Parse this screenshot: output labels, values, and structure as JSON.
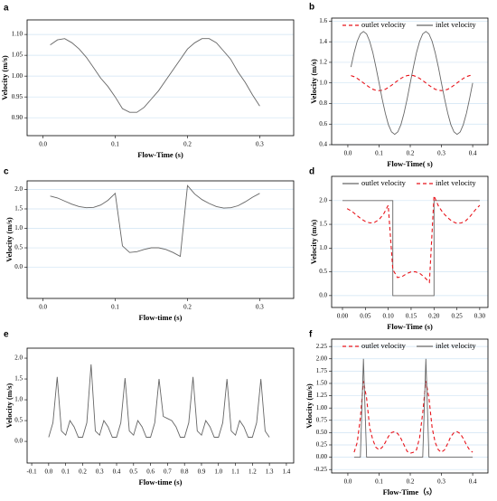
{
  "chart_data": [
    {
      "type": "line",
      "label": "a",
      "xlabel": "Flow-Time (s)",
      "ylabel": "Velocity (m/s)",
      "xlim": [
        -0.022,
        0.347
      ],
      "ylim": [
        0.857,
        1.135
      ],
      "xticks": [
        {
          "value": 0,
          "label": "0.0"
        },
        0.1,
        0.2,
        0.3
      ],
      "yticks": [
        {
          "value": 0.9,
          "label": "0.90"
        },
        0.95,
        {
          "value": 1,
          "label": "1.00"
        },
        1.05,
        {
          "value": 1.1,
          "label": "1.10"
        }
      ],
      "grid": true,
      "series": [
        {
          "color": "#666666",
          "dashed": false,
          "x": [
            0.01,
            0.02,
            0.03,
            0.04,
            0.05,
            0.06,
            0.07,
            0.08,
            0.09,
            0.1,
            0.11,
            0.12,
            0.13,
            0.14,
            0.15,
            0.16,
            0.17,
            0.18,
            0.19,
            0.2,
            0.21,
            0.22,
            0.23,
            0.24,
            0.25,
            0.26,
            0.27,
            0.28,
            0.29,
            0.3
          ],
          "values": [
            1.075,
            1.087,
            1.09,
            1.08,
            1.065,
            1.045,
            1.02,
            0.995,
            0.975,
            0.95,
            0.922,
            0.913,
            0.913,
            0.925,
            0.945,
            0.965,
            0.99,
            1.015,
            1.04,
            1.065,
            1.08,
            1.09,
            1.09,
            1.08,
            1.06,
            1.04,
            1.01,
            0.985,
            0.955,
            0.928
          ]
        }
      ]
    },
    {
      "type": "line",
      "label": "b",
      "xlabel": "Flow-Time( s)",
      "ylabel": "Velocity (m/s)",
      "xlim": [
        -0.052,
        0.449
      ],
      "ylim": [
        0.4,
        1.63
      ],
      "xticks": [
        {
          "value": 0,
          "label": "0.0"
        },
        0.1,
        0.2,
        0.3,
        0.4
      ],
      "yticks": [
        0.4,
        0.6,
        0.8,
        {
          "value": 1,
          "label": "1.0"
        },
        1.2,
        1.4,
        1.6
      ],
      "grid": true,
      "legend": "top",
      "series": [
        {
          "name": "outlet velocity",
          "color": "#e8141b",
          "dashed": true,
          "x": [
            0.01,
            0.02,
            0.03,
            0.04,
            0.05,
            0.06,
            0.07,
            0.08,
            0.09,
            0.1,
            0.11,
            0.12,
            0.13,
            0.14,
            0.15,
            0.16,
            0.17,
            0.18,
            0.19,
            0.2,
            0.21,
            0.22,
            0.23,
            0.24,
            0.25,
            0.26,
            0.27,
            0.28,
            0.29,
            0.3,
            0.31,
            0.32,
            0.33,
            0.34,
            0.35,
            0.36,
            0.37,
            0.38,
            0.39,
            0.4
          ],
          "values": [
            1.071,
            1.061,
            1.044,
            1.023,
            1.0,
            0.977,
            0.956,
            0.939,
            0.929,
            0.925,
            0.929,
            0.939,
            0.956,
            0.977,
            1.0,
            1.023,
            1.044,
            1.061,
            1.071,
            1.075,
            1.071,
            1.061,
            1.044,
            1.023,
            1.0,
            0.977,
            0.956,
            0.939,
            0.929,
            0.925,
            0.929,
            0.939,
            0.956,
            0.977,
            1.0,
            1.023,
            1.044,
            1.061,
            1.071,
            1.075
          ]
        },
        {
          "name": "inlet velocity",
          "color": "#666666",
          "dashed": false,
          "x": [
            0.01,
            0.02,
            0.03,
            0.04,
            0.05,
            0.06,
            0.07,
            0.08,
            0.09,
            0.1,
            0.11,
            0.12,
            0.13,
            0.14,
            0.15,
            0.16,
            0.17,
            0.18,
            0.19,
            0.2,
            0.21,
            0.22,
            0.23,
            0.24,
            0.25,
            0.26,
            0.27,
            0.28,
            0.29,
            0.3,
            0.31,
            0.32,
            0.33,
            0.34,
            0.35,
            0.36,
            0.37,
            0.38,
            0.39,
            0.4
          ],
          "values": [
            1.155,
            1.294,
            1.405,
            1.476,
            1.5,
            1.476,
            1.405,
            1.294,
            1.155,
            1.0,
            0.845,
            0.706,
            0.595,
            0.524,
            0.5,
            0.524,
            0.595,
            0.706,
            0.845,
            1.0,
            1.155,
            1.294,
            1.405,
            1.476,
            1.5,
            1.476,
            1.405,
            1.294,
            1.155,
            1.0,
            0.845,
            0.706,
            0.595,
            0.524,
            0.5,
            0.524,
            0.595,
            0.706,
            0.845,
            1.0
          ]
        }
      ]
    },
    {
      "type": "line",
      "label": "c",
      "xlabel": "Flow-time (s)",
      "ylabel": "Velocity (m/s)",
      "xlim": [
        -0.022,
        0.347
      ],
      "ylim": [
        -0.8,
        2.22
      ],
      "xticks": [
        {
          "value": 0,
          "label": "0.0"
        },
        0.1,
        0.2,
        0.3
      ],
      "yticks": [
        {
          "value": 0,
          "label": "0.0"
        },
        0.5,
        {
          "value": 1,
          "label": "1.0"
        },
        1.5,
        {
          "value": 2,
          "label": "2.0"
        }
      ],
      "grid": true,
      "series": [
        {
          "color": "#666666",
          "dashed": false,
          "x": [
            0.01,
            0.02,
            0.03,
            0.04,
            0.05,
            0.06,
            0.07,
            0.08,
            0.09,
            0.1,
            0.11,
            0.12,
            0.13,
            0.14,
            0.15,
            0.16,
            0.17,
            0.18,
            0.19,
            0.2,
            0.21,
            0.22,
            0.23,
            0.24,
            0.25,
            0.26,
            0.27,
            0.28,
            0.29,
            0.3
          ],
          "values": [
            1.83,
            1.78,
            1.7,
            1.62,
            1.56,
            1.53,
            1.54,
            1.6,
            1.72,
            1.9,
            0.55,
            0.38,
            0.4,
            0.46,
            0.5,
            0.5,
            0.46,
            0.38,
            0.28,
            2.1,
            1.88,
            1.74,
            1.64,
            1.56,
            1.52,
            1.53,
            1.58,
            1.68,
            1.8,
            1.9
          ]
        }
      ]
    },
    {
      "type": "line",
      "label": "d",
      "xlabel": "Flow-Time (s)",
      "ylabel": "Velocity (m/s)",
      "xlim": [
        -0.0237,
        0.318
      ],
      "ylim": [
        -0.25,
        2.51
      ],
      "xticks": [
        {
          "value": 0,
          "label": "0.00"
        },
        0.05,
        {
          "value": 0.1,
          "label": "0.10"
        },
        0.15,
        {
          "value": 0.2,
          "label": "0.20"
        },
        0.25,
        {
          "value": 0.3,
          "label": "0.30"
        }
      ],
      "yticks": [
        {
          "value": 0,
          "label": "0.0"
        },
        0.5,
        {
          "value": 1,
          "label": "1.0"
        },
        1.5,
        {
          "value": 2,
          "label": "2.0"
        }
      ],
      "grid": true,
      "legend": "top",
      "series": [
        {
          "name": "outlet velocity",
          "color": "#666666",
          "dashed": false,
          "x": [
            0,
            0.11,
            0.11,
            0.2,
            0.2,
            0.3
          ],
          "values": [
            2,
            2,
            0,
            0,
            2,
            2
          ]
        },
        {
          "name": "inlet velocity",
          "color": "#e8141b",
          "dashed": true,
          "x": [
            0.01,
            0.02,
            0.03,
            0.04,
            0.05,
            0.06,
            0.07,
            0.08,
            0.09,
            0.1,
            0.11,
            0.12,
            0.13,
            0.14,
            0.15,
            0.16,
            0.17,
            0.18,
            0.19,
            0.2,
            0.21,
            0.22,
            0.23,
            0.24,
            0.25,
            0.26,
            0.27,
            0.28,
            0.29,
            0.3
          ],
          "values": [
            1.83,
            1.78,
            1.7,
            1.62,
            1.56,
            1.53,
            1.54,
            1.6,
            1.72,
            1.9,
            0.55,
            0.38,
            0.4,
            0.46,
            0.5,
            0.5,
            0.46,
            0.38,
            0.28,
            2.1,
            1.88,
            1.74,
            1.64,
            1.56,
            1.52,
            1.53,
            1.58,
            1.68,
            1.8,
            1.9
          ]
        }
      ]
    },
    {
      "type": "line",
      "label": "e",
      "xlabel": "Flow-time (s)",
      "ylabel": "Velocity (m/s)",
      "xlim": [
        -0.127,
        1.443
      ],
      "ylim": [
        -0.52,
        2.24
      ],
      "xticks": [
        -0.1,
        {
          "value": 0,
          "label": "0.0"
        },
        0.1,
        0.2,
        0.3,
        0.4,
        0.5,
        0.6,
        0.7,
        0.8,
        0.9,
        {
          "value": 1,
          "label": "1.0"
        },
        1.1,
        1.2,
        1.3,
        1.4
      ],
      "yticks": [
        {
          "value": 0,
          "label": "0.0"
        },
        0.5,
        {
          "value": 1,
          "label": "1.0"
        },
        1.5,
        {
          "value": 2,
          "label": "2.0"
        }
      ],
      "grid": false,
      "series": [
        {
          "color": "#666666",
          "dashed": false,
          "x": [
            0,
            0.025,
            0.05,
            0.075,
            0.1,
            0.125,
            0.15,
            0.175,
            0.2,
            0.225,
            0.25,
            0.275,
            0.3,
            0.325,
            0.35,
            0.375,
            0.4,
            0.425,
            0.45,
            0.475,
            0.5,
            0.525,
            0.55,
            0.575,
            0.6,
            0.625,
            0.65,
            0.675,
            0.7,
            0.725,
            0.75,
            0.775,
            0.8,
            0.825,
            0.85,
            0.875,
            0.9,
            0.925,
            0.95,
            0.975,
            1.0,
            1.025,
            1.05,
            1.075,
            1.1,
            1.125,
            1.15,
            1.175,
            1.2,
            1.225,
            1.25,
            1.275,
            1.3
          ],
          "values": [
            0.1,
            0.45,
            1.55,
            0.25,
            0.15,
            0.5,
            0.35,
            0.1,
            0.1,
            0.45,
            1.85,
            0.25,
            0.15,
            0.5,
            0.35,
            0.1,
            0.1,
            0.45,
            1.52,
            0.25,
            0.15,
            0.5,
            0.35,
            0.1,
            0.1,
            0.45,
            1.5,
            0.6,
            0.55,
            0.5,
            0.35,
            0.1,
            0.1,
            0.45,
            1.55,
            0.25,
            0.15,
            0.5,
            0.35,
            0.1,
            0.1,
            0.45,
            1.5,
            0.25,
            0.15,
            0.5,
            0.35,
            0.1,
            0.1,
            0.45,
            1.5,
            0.25,
            0.1
          ]
        }
      ]
    },
    {
      "type": "line",
      "label": "f",
      "xlabel": "Flow-Time（s）",
      "ylabel": "Velocity (m/s)",
      "xlim": [
        -0.052,
        0.449
      ],
      "ylim": [
        -0.32,
        2.4
      ],
      "xticks": [
        {
          "value": 0,
          "label": "0.0"
        },
        0.1,
        0.2,
        0.3,
        0.4
      ],
      "yticks": [
        -0.25,
        {
          "value": 0,
          "label": "0.00"
        },
        0.25,
        {
          "value": 0.5,
          "label": "0.50"
        },
        0.75,
        {
          "value": 1,
          "label": "1.00"
        },
        1.25,
        {
          "value": 1.5,
          "label": "1.50"
        },
        1.75,
        {
          "value": 2,
          "label": "2.00"
        },
        2.25
      ],
      "grid": true,
      "legend": "top",
      "series": [
        {
          "name": "outlet velocity",
          "color": "#e8141b",
          "dashed": true,
          "x": [
            0.02,
            0.03,
            0.04,
            0.05,
            0.06,
            0.07,
            0.08,
            0.09,
            0.1,
            0.11,
            0.12,
            0.13,
            0.14,
            0.15,
            0.16,
            0.17,
            0.18,
            0.19,
            0.2,
            0.21,
            0.22,
            0.23,
            0.24,
            0.25,
            0.26,
            0.27,
            0.28,
            0.29,
            0.3,
            0.31,
            0.32,
            0.33,
            0.34,
            0.35,
            0.36,
            0.37,
            0.38,
            0.39,
            0.4
          ],
          "values": [
            0.1,
            0.3,
            0.8,
            1.55,
            1.2,
            0.6,
            0.35,
            0.2,
            0.15,
            0.2,
            0.3,
            0.42,
            0.5,
            0.52,
            0.48,
            0.38,
            0.25,
            0.12,
            0.08,
            0.1,
            0.15,
            0.4,
            0.9,
            1.55,
            1.2,
            0.6,
            0.3,
            0.15,
            0.1,
            0.15,
            0.28,
            0.42,
            0.5,
            0.52,
            0.48,
            0.38,
            0.25,
            0.15,
            0.1
          ]
        },
        {
          "name": "inlet velocity",
          "color": "#666666",
          "dashed": false,
          "x": [
            0.02,
            0.04,
            0.05,
            0.06,
            0.24,
            0.25,
            0.26,
            0.4
          ],
          "values": [
            0,
            0,
            2,
            0,
            0,
            2,
            0,
            0
          ]
        }
      ]
    }
  ]
}
